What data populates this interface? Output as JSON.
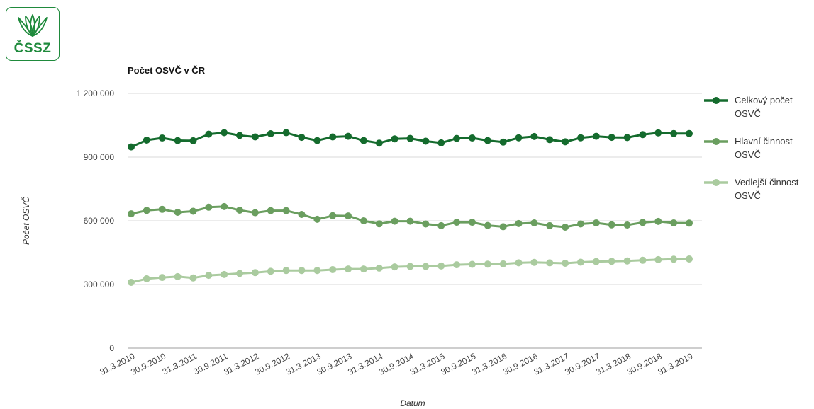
{
  "logo": {
    "text": "ČSSZ",
    "icon": "cssz-leaf-logo"
  },
  "chart_data": {
    "type": "line",
    "title": "Počet OSVČ v ČR",
    "xlabel": "Datum",
    "ylabel": "Počet OSVČ",
    "ylim": [
      0,
      1200000
    ],
    "yticks": [
      0,
      300000,
      600000,
      900000,
      1200000
    ],
    "ytick_labels": [
      "0",
      "300 000",
      "600 000",
      "900 000",
      "1 200 000"
    ],
    "x": [
      "31.3.2010",
      "30.6.2010",
      "30.9.2010",
      "31.12.2010",
      "31.3.2011",
      "30.6.2011",
      "30.9.2011",
      "31.12.2011",
      "31.3.2012",
      "30.6.2012",
      "30.9.2012",
      "31.12.2012",
      "31.3.2013",
      "30.6.2013",
      "30.9.2013",
      "31.12.2013",
      "31.3.2014",
      "30.6.2014",
      "30.9.2014",
      "31.12.2014",
      "31.3.2015",
      "30.6.2015",
      "30.9.2015",
      "31.12.2015",
      "31.3.2016",
      "30.6.2016",
      "30.9.2016",
      "31.12.2016",
      "31.3.2017",
      "30.6.2017",
      "30.9.2017",
      "31.12.2017",
      "31.3.2018",
      "30.6.2018",
      "30.9.2018",
      "31.12.2018",
      "31.3.2019"
    ],
    "x_tick_labels_shown": [
      "31.3.2010",
      "30.9.2010",
      "31.3.2011",
      "30.9.2011",
      "31.3.2012",
      "30.9.2012",
      "31.3.2013",
      "30.9.2013",
      "31.3.2014",
      "30.9.2014",
      "31.3.2015",
      "30.9.2015",
      "31.3.2016",
      "30.9.2016",
      "31.3.2017",
      "30.9.2017",
      "31.3.2018",
      "30.9.2018",
      "31.3.2019"
    ],
    "grid": true,
    "legend_position": "right",
    "series": [
      {
        "name": "Celkový počet OSVČ",
        "color": "#146b2d",
        "values": [
          948000,
          980000,
          990000,
          978000,
          977000,
          1008000,
          1015000,
          1002000,
          995000,
          1010000,
          1015000,
          993000,
          978000,
          995000,
          998000,
          978000,
          966000,
          986000,
          988000,
          975000,
          967000,
          988000,
          990000,
          978000,
          971000,
          991000,
          997000,
          982000,
          972000,
          991000,
          998000,
          993000,
          992000,
          1006000,
          1014000,
          1011000,
          1011000
        ]
      },
      {
        "name": "Hlavní činnost OSVČ",
        "color": "#6a9e5f",
        "values": [
          633000,
          649000,
          654000,
          640000,
          645000,
          664000,
          667000,
          650000,
          638000,
          648000,
          648000,
          630000,
          607000,
          624000,
          623000,
          600000,
          586000,
          598000,
          598000,
          585000,
          577000,
          593000,
          593000,
          578000,
          572000,
          587000,
          590000,
          577000,
          570000,
          585000,
          590000,
          581000,
          580000,
          592000,
          597000,
          590000,
          589000
        ]
      },
      {
        "name": "Vedlejší činnost OSVČ",
        "color": "#aacb9f",
        "values": [
          310000,
          327000,
          333000,
          337000,
          331000,
          343000,
          347000,
          352000,
          356000,
          362000,
          366000,
          366000,
          366000,
          370000,
          373000,
          373000,
          377000,
          383000,
          385000,
          385000,
          387000,
          393000,
          395000,
          396000,
          397000,
          402000,
          404000,
          402000,
          400000,
          405000,
          408000,
          409000,
          411000,
          414000,
          417000,
          419000,
          420000
        ]
      }
    ]
  }
}
